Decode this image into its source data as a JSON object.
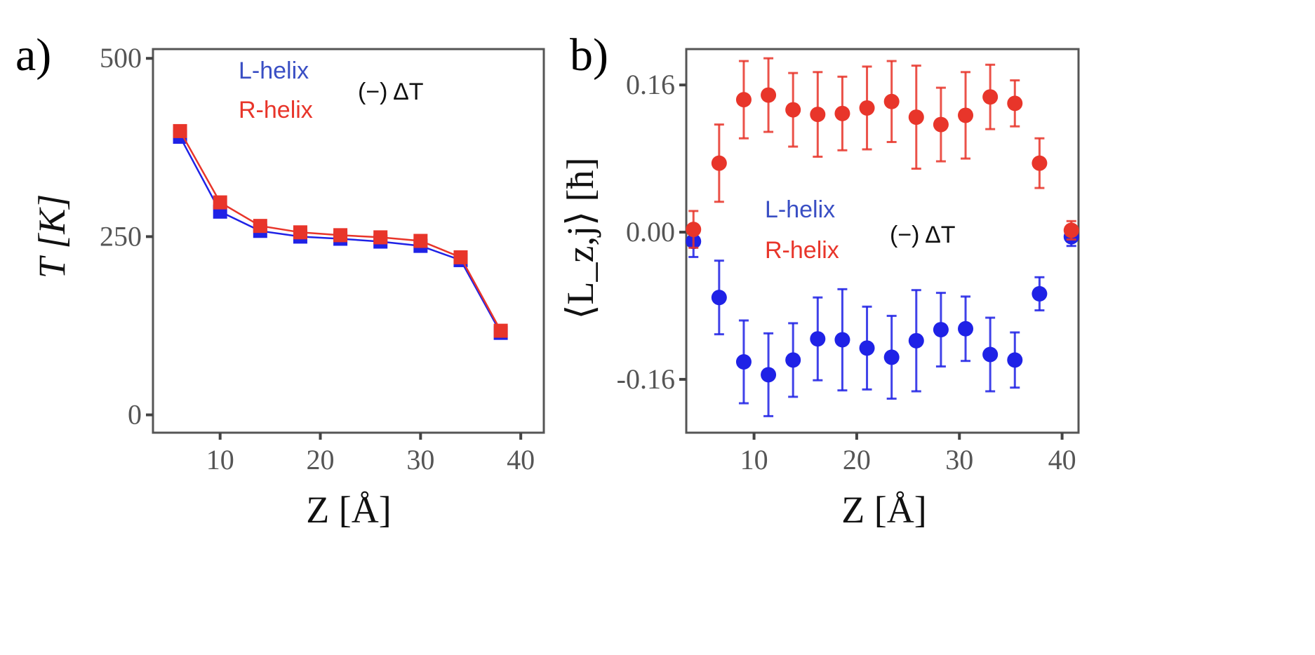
{
  "colors": {
    "L-helix": "#1f22e6",
    "R-helix": "#e8352a",
    "legend_L": "#3a4fc4",
    "legend_R": "#e8352a"
  },
  "chart_data": [
    {
      "type": "line",
      "panel_label": "a)",
      "xlabel": "Z [Å]",
      "ylabel": "T [K]",
      "xlim": [
        3.3,
        42.3
      ],
      "ylim": [
        -25,
        513
      ],
      "xticks": [
        10,
        20,
        30,
        40
      ],
      "yticks": [
        0,
        250,
        500
      ],
      "annotation": "(−) ΔT",
      "legend": [
        "L-helix",
        "R-helix"
      ],
      "x": [
        6,
        10,
        14,
        18,
        22,
        26,
        30,
        34,
        38
      ],
      "series": [
        {
          "name": "L-helix",
          "marker": "square",
          "values": [
            390,
            285,
            258,
            250,
            247,
            243,
            237,
            217,
            115
          ]
        },
        {
          "name": "R-helix",
          "marker": "square",
          "values": [
            398,
            298,
            265,
            256,
            252,
            249,
            244,
            221,
            118
          ]
        }
      ]
    },
    {
      "type": "scatter",
      "panel_label": "b)",
      "xlabel": "Z [Å]",
      "ylabel": "⟨L_z,j⟩ [ħ]",
      "xlim": [
        3.4,
        41.6
      ],
      "ylim": [
        -0.218,
        0.199
      ],
      "xticks": [
        10,
        20,
        30,
        40
      ],
      "yticks": [
        -0.16,
        0.0,
        0.16
      ],
      "ytick_labels": [
        "-0.16",
        "0.00",
        "0.16"
      ],
      "annotation": "(−) ΔT",
      "legend": [
        "L-helix",
        "R-helix"
      ],
      "x": [
        4.1,
        6.6,
        9.0,
        11.4,
        13.8,
        16.2,
        18.6,
        21.0,
        23.4,
        25.8,
        28.2,
        30.6,
        33.0,
        35.4,
        37.8,
        40.9
      ],
      "series": [
        {
          "name": "L-helix",
          "marker": "circle",
          "values": [
            -0.01,
            -0.071,
            -0.141,
            -0.155,
            -0.139,
            -0.116,
            -0.117,
            -0.126,
            -0.136,
            -0.118,
            -0.106,
            -0.105,
            -0.133,
            -0.139,
            -0.067,
            -0.005
          ],
          "errors": [
            0.017,
            0.04,
            0.045,
            0.045,
            0.04,
            0.045,
            0.055,
            0.045,
            0.045,
            0.055,
            0.04,
            0.035,
            0.04,
            0.03,
            0.018,
            0.01
          ]
        },
        {
          "name": "R-helix",
          "marker": "circle",
          "values": [
            0.003,
            0.075,
            0.144,
            0.149,
            0.133,
            0.128,
            0.129,
            0.135,
            0.142,
            0.125,
            0.117,
            0.127,
            0.147,
            0.14,
            0.075,
            0.002
          ],
          "errors": [
            0.02,
            0.042,
            0.042,
            0.04,
            0.04,
            0.046,
            0.04,
            0.045,
            0.044,
            0.056,
            0.04,
            0.047,
            0.035,
            0.025,
            0.027,
            0.01
          ]
        }
      ]
    }
  ]
}
